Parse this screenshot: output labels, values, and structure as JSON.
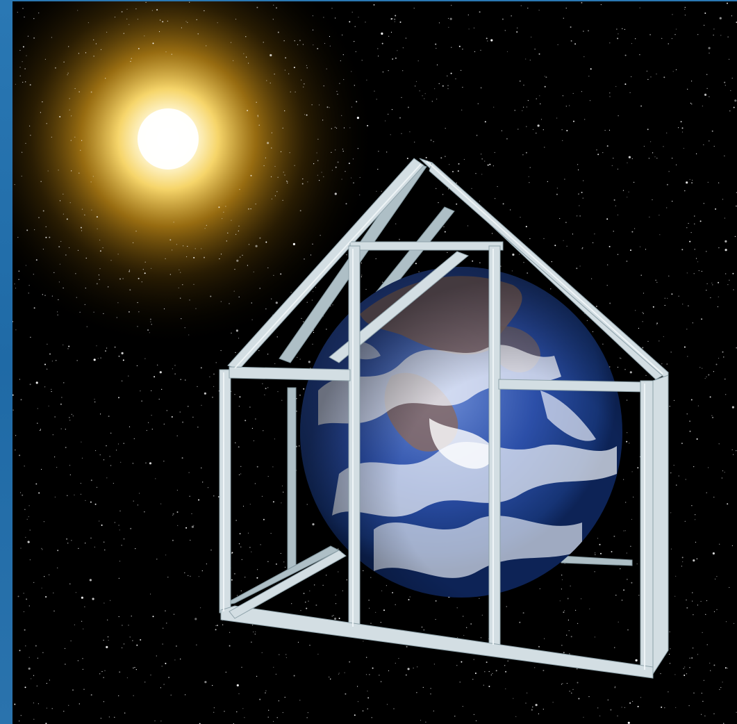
{
  "image": {
    "subject": "earth-in-greenhouse-frame",
    "elements": [
      "starfield",
      "sun-glow",
      "earth-globe",
      "greenhouse-frame"
    ],
    "colors": {
      "space": "#000000",
      "side_strip": "#2a78b4",
      "sun_core": "#fffbe6",
      "sun_glow": "#d8a21c",
      "ocean": "#1f3f8f",
      "cloud": "#f4f6fb",
      "frame": "#c9d6dc",
      "frame_shadow": "#7f949c"
    }
  }
}
